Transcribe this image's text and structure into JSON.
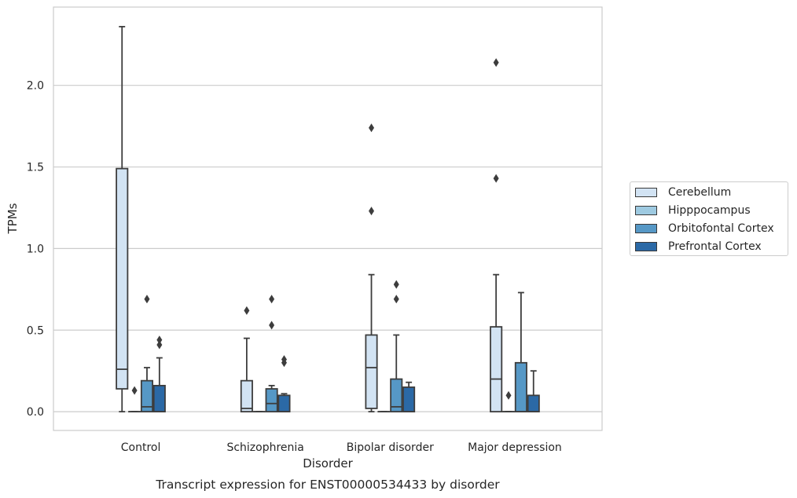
{
  "chart_data": {
    "type": "box",
    "title": "Transcript expression for ENST00000534433 by disorder",
    "xlabel": "Disorder",
    "ylabel": "TPMs",
    "ylim": [
      -0.115,
      2.48
    ],
    "yticks": [
      "0.0",
      "0.5",
      "1.0",
      "1.5",
      "2.0"
    ],
    "ytick_values": [
      0.0,
      0.5,
      1.0,
      1.5,
      2.0
    ],
    "grid": "horizontal",
    "legend_position": "right",
    "categories": [
      "Control",
      "Schizophrenia",
      "Bipolar disorder",
      "Major depression"
    ],
    "series": [
      {
        "name": "Cerebellum",
        "color": "#d2e3f3",
        "boxes": [
          {
            "whislo": 0.0,
            "q1": 0.14,
            "med": 0.26,
            "q3": 1.49,
            "whishi": 2.36,
            "fliers": []
          },
          {
            "whislo": 0.0,
            "q1": 0.0,
            "med": 0.02,
            "q3": 0.19,
            "whishi": 0.45,
            "fliers": [
              0.62
            ]
          },
          {
            "whislo": 0.0,
            "q1": 0.02,
            "med": 0.27,
            "q3": 0.47,
            "whishi": 0.84,
            "fliers": [
              1.23,
              1.74
            ]
          },
          {
            "whislo": 0.0,
            "q1": 0.0,
            "med": 0.2,
            "q3": 0.52,
            "whishi": 0.84,
            "fliers": [
              1.43,
              2.14
            ]
          }
        ]
      },
      {
        "name": "Hipppocampus",
        "color": "#9ecae1",
        "boxes": [
          {
            "whislo": 0.0,
            "q1": 0.0,
            "med": 0.0,
            "q3": 0.0,
            "whishi": 0.0,
            "fliers": [
              0.13
            ]
          },
          {
            "whislo": 0.0,
            "q1": 0.0,
            "med": 0.0,
            "q3": 0.0,
            "whishi": 0.0,
            "fliers": []
          },
          {
            "whislo": 0.0,
            "q1": 0.0,
            "med": 0.0,
            "q3": 0.0,
            "whishi": 0.0,
            "fliers": []
          },
          {
            "whislo": 0.0,
            "q1": 0.0,
            "med": 0.0,
            "q3": 0.0,
            "whishi": 0.0,
            "fliers": [
              0.1
            ]
          }
        ]
      },
      {
        "name": "Orbitofontal Cortex",
        "color": "#5698c6",
        "boxes": [
          {
            "whislo": 0.0,
            "q1": 0.0,
            "med": 0.03,
            "q3": 0.19,
            "whishi": 0.27,
            "fliers": [
              0.69
            ]
          },
          {
            "whislo": 0.0,
            "q1": 0.0,
            "med": 0.05,
            "q3": 0.14,
            "whishi": 0.16,
            "fliers": [
              0.53,
              0.69
            ]
          },
          {
            "whislo": 0.0,
            "q1": 0.0,
            "med": 0.03,
            "q3": 0.2,
            "whishi": 0.47,
            "fliers": [
              0.69,
              0.78
            ]
          },
          {
            "whislo": 0.0,
            "q1": 0.0,
            "med": 0.0,
            "q3": 0.3,
            "whishi": 0.73,
            "fliers": []
          }
        ]
      },
      {
        "name": "Prefrontal Cortex",
        "color": "#2b69a6",
        "boxes": [
          {
            "whislo": 0.0,
            "q1": 0.0,
            "med": 0.0,
            "q3": 0.16,
            "whishi": 0.33,
            "fliers": [
              0.41,
              0.44
            ]
          },
          {
            "whislo": 0.0,
            "q1": 0.0,
            "med": 0.0,
            "q3": 0.1,
            "whishi": 0.11,
            "fliers": [
              0.3,
              0.32
            ]
          },
          {
            "whislo": 0.0,
            "q1": 0.0,
            "med": 0.0,
            "q3": 0.15,
            "whishi": 0.18,
            "fliers": []
          },
          {
            "whislo": 0.0,
            "q1": 0.0,
            "med": 0.0,
            "q3": 0.1,
            "whishi": 0.25,
            "fliers": []
          }
        ]
      }
    ]
  }
}
